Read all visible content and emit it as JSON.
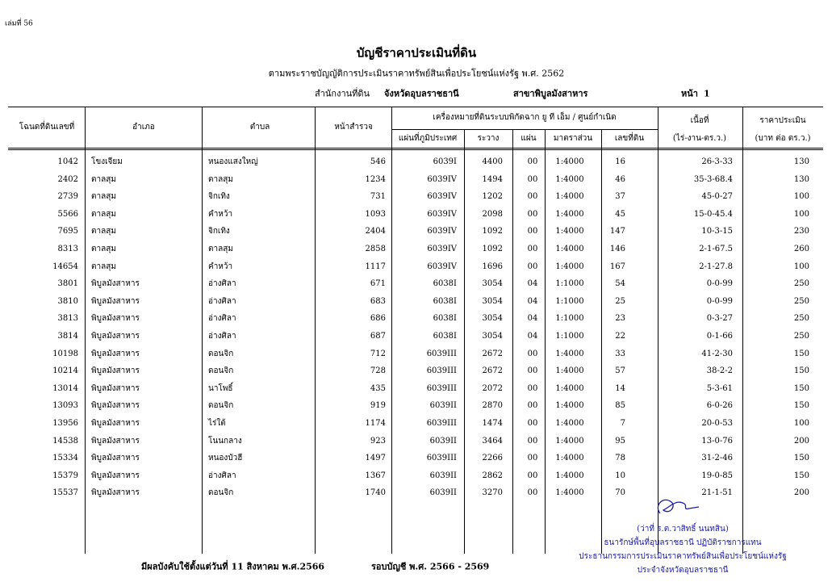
{
  "header": {
    "volume": "เล่มที่ 56",
    "title": "บัญชีราคาประเมินที่ดิน",
    "subtitle": "ตามพระราชบัญญัติการประเมินราคาทรัพย์สินเพื่อประโยชน์แห่งรัฐ พ.ศ. 2562",
    "office_label": "สำนักงานที่ดิน",
    "province": "จังหวัดอุบลราชธานี",
    "branch": "สาขาพิบูลมังสาหาร",
    "page_label": "หน้า",
    "page": 1
  },
  "table": {
    "columns": [
      "โฉนดที่ดินเลขที่",
      "อำเภอ",
      "ตำบล",
      "หน้าสำรวจ"
    ],
    "group_header": "เครื่องหมายที่ดินระบบพิกัดฉาก ยู ที เอ็ม / ศูนย์กำเนิด",
    "group_columns": [
      "แผ่นที่ภูมิประเทศ",
      "ระวาง",
      "แผ่น",
      "มาตราส่วน",
      "เลขที่ดิน"
    ],
    "area_header": "เนื้อที่",
    "area_unit": "(ไร่-งาน-ตร.ว.)",
    "price_header": "ราคาประเมิน",
    "price_unit": "(บาท ต่อ ตร.ว.)",
    "rows": [
      [
        1042,
        "โขงเจียม",
        "หนองแสงใหญ่",
        546,
        "6039I",
        4400,
        "00",
        "1:4000",
        16,
        "26-3-33",
        130
      ],
      [
        2402,
        "ตาลสุม",
        "ตาลสุม",
        1234,
        "6039IV",
        1494,
        "00",
        "1:4000",
        46,
        "35-3-68.4",
        130
      ],
      [
        2739,
        "ตาลสุม",
        "จิกเทิง",
        731,
        "6039IV",
        1202,
        "00",
        "1:4000",
        37,
        "45-0-27",
        100
      ],
      [
        5566,
        "ตาลสุม",
        "คำหว้า",
        1093,
        "6039IV",
        2098,
        "00",
        "1:4000",
        45,
        "15-0-45.4",
        100
      ],
      [
        7695,
        "ตาลสุม",
        "จิกเทิง",
        2404,
        "6039IV",
        1092,
        "00",
        "1:4000",
        147,
        "10-3-15",
        230
      ],
      [
        8313,
        "ตาลสุม",
        "ตาลสุม",
        2858,
        "6039IV",
        1092,
        "00",
        "1:4000",
        146,
        "2-1-67.5",
        260
      ],
      [
        14654,
        "ตาลสุม",
        "คำหว้า",
        1117,
        "6039IV",
        1696,
        "00",
        "1:4000",
        167,
        "2-1-27.8",
        100
      ],
      [
        3801,
        "พิบูลมังสาหาร",
        "อ่างศิลา",
        671,
        "6038I",
        3054,
        "04",
        "1:1000",
        54,
        "0-0-99",
        250
      ],
      [
        3810,
        "พิบูลมังสาหาร",
        "อ่างศิลา",
        683,
        "6038I",
        3054,
        "04",
        "1:1000",
        25,
        "0-0-99",
        250
      ],
      [
        3813,
        "พิบูลมังสาหาร",
        "อ่างศิลา",
        686,
        "6038I",
        3054,
        "04",
        "1:1000",
        23,
        "0-3-27",
        250
      ],
      [
        3814,
        "พิบูลมังสาหาร",
        "อ่างศิลา",
        687,
        "6038I",
        3054,
        "04",
        "1:1000",
        22,
        "0-1-66",
        250
      ],
      [
        10198,
        "พิบูลมังสาหาร",
        "ดอนจิก",
        712,
        "6039III",
        2672,
        "00",
        "1:4000",
        33,
        "41-2-30",
        150
      ],
      [
        10214,
        "พิบูลมังสาหาร",
        "ดอนจิก",
        728,
        "6039III",
        2672,
        "00",
        "1:4000",
        57,
        "38-2-2",
        150
      ],
      [
        13014,
        "พิบูลมังสาหาร",
        "นาโพธิ์",
        435,
        "6039III",
        2072,
        "00",
        "1:4000",
        14,
        "5-3-61",
        150
      ],
      [
        13093,
        "พิบูลมังสาหาร",
        "ดอนจิก",
        919,
        "6039II",
        2870,
        "00",
        "1:4000",
        85,
        "6-0-26",
        150
      ],
      [
        13956,
        "พิบูลมังสาหาร",
        "ไร่ใต้",
        1174,
        "6039III",
        1474,
        "00",
        "1:4000",
        7,
        "20-0-53",
        100
      ],
      [
        14538,
        "พิบูลมังสาหาร",
        "โนนกลาง",
        923,
        "6039II",
        3464,
        "00",
        "1:4000",
        95,
        "13-0-76",
        200
      ],
      [
        15334,
        "พิบูลมังสาหาร",
        "หนองบัวฮี",
        1497,
        "6039III",
        2266,
        "00",
        "1:4000",
        78,
        "31-2-46",
        150
      ],
      [
        15379,
        "พิบูลมังสาหาร",
        "อ่างศิลา",
        1367,
        "6039II",
        2862,
        "00",
        "1:4000",
        10,
        "19-0-85",
        150
      ],
      [
        15537,
        "พิบูลมังสาหาร",
        "ดอนจิก",
        1740,
        "6039II",
        3270,
        "00",
        "1:4000",
        70,
        "21-1-51",
        200
      ]
    ]
  },
  "footer": {
    "effective": "มีผลบังคับใช้ตั้งแต่วันที่ 11 สิงหาคม พ.ศ.2566",
    "cycle": "รอบบัญชี พ.ศ. 2566 - 2569"
  },
  "signature": {
    "name": "(ว่าที่ ร.ต.วาสิทธิ์ นนทสิน)",
    "position": "ธนารักษ์พื้นที่อุบลราชธานี ปฏิบัติราชการแทน",
    "role": "ประธานกรรมการประเมินราคาทรัพย์สินเพื่อประโยชน์แห่งรัฐ",
    "province": "ประจำจังหวัดอุบลราชธานี"
  }
}
